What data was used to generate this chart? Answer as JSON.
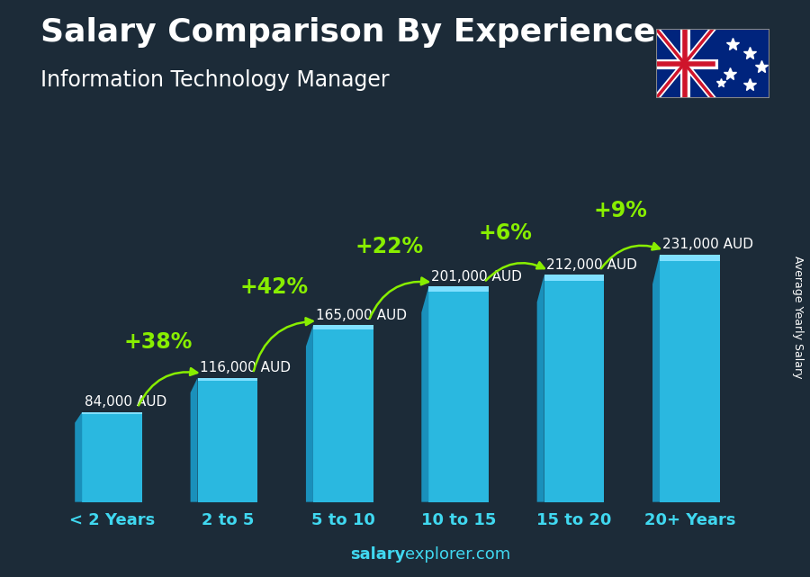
{
  "title": "Salary Comparison By Experience",
  "subtitle": "Information Technology Manager",
  "categories": [
    "< 2 Years",
    "2 to 5",
    "5 to 10",
    "10 to 15",
    "15 to 20",
    "20+ Years"
  ],
  "values": [
    84000,
    116000,
    165000,
    201000,
    212000,
    231000
  ],
  "labels": [
    "84,000 AUD",
    "116,000 AUD",
    "165,000 AUD",
    "201,000 AUD",
    "212,000 AUD",
    "231,000 AUD"
  ],
  "pct_labels": [
    "+38%",
    "+42%",
    "+22%",
    "+6%",
    "+9%"
  ],
  "bar_color": "#2ab8e0",
  "bar_left_face": "#1a90bb",
  "bar_top_face": "#80e0ff",
  "background_color": "#1c2b38",
  "title_color": "#ffffff",
  "subtitle_color": "#ffffff",
  "label_color": "#ffffff",
  "pct_color": "#88ee00",
  "xtick_color": "#40d8f0",
  "ylabel_text": "Average Yearly Salary",
  "footer_salary": "salary",
  "footer_rest": "explorer.com",
  "footer_color": "#40d8f0",
  "ylim": [
    0,
    280000
  ],
  "title_fontsize": 26,
  "subtitle_fontsize": 17,
  "label_fontsize": 11,
  "pct_fontsize": 17,
  "xtick_fontsize": 13,
  "bar_width": 0.52
}
